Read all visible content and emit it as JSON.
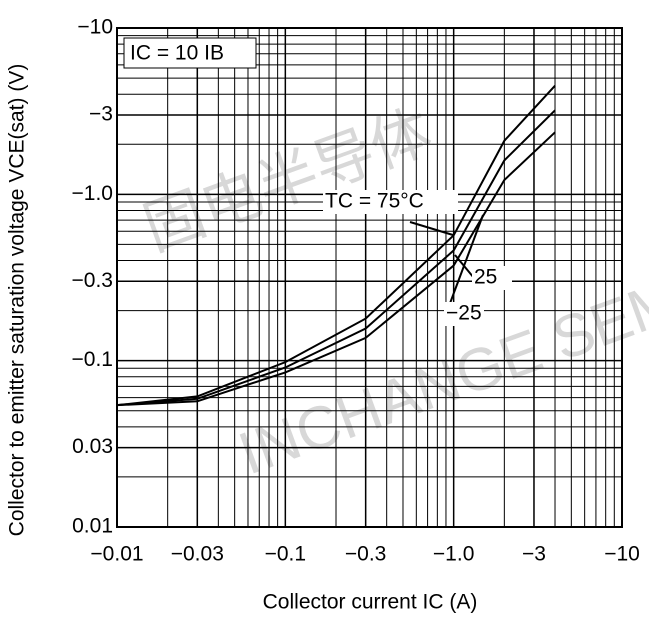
{
  "chart_data": {
    "type": "line",
    "x_label": "Collector current  IC  (A)",
    "y_label": "Collector to emitter saturation voltage VCE(sat) (V)",
    "annotation": "IC = 10 IB",
    "watermarks": [
      "固电半导体",
      "INCHANGE SEMI"
    ],
    "log_x": true,
    "log_y": true,
    "grid": true,
    "minor_grid": true,
    "xlim": [
      -0.01,
      -10
    ],
    "ylim": [
      -0.01,
      -10
    ],
    "xticks": [
      {
        "value": -0.01,
        "label": "−0.01"
      },
      {
        "value": -0.03,
        "label": "−0.03"
      },
      {
        "value": -0.1,
        "label": "−0.1"
      },
      {
        "value": -0.3,
        "label": "−0.3"
      },
      {
        "value": -1.0,
        "label": "−1.0"
      },
      {
        "value": -3,
        "label": "−3"
      },
      {
        "value": -10,
        "label": "−10"
      }
    ],
    "yticks": [
      {
        "value": -0.01,
        "label": "0.01"
      },
      {
        "value": -0.03,
        "label": "0.03"
      },
      {
        "value": -0.1,
        "label": "−0.1"
      },
      {
        "value": -0.3,
        "label": "−0.3"
      },
      {
        "value": -1.0,
        "label": "−1.0"
      },
      {
        "value": -3,
        "label": "−3"
      },
      {
        "value": -10,
        "label": "−10"
      }
    ],
    "x": [
      -0.01,
      -0.03,
      -0.1,
      -0.3,
      -1,
      -2,
      -4
    ],
    "series": [
      {
        "name": "TC = 75°C",
        "color": "#000000",
        "values": [
          -0.054,
          -0.061,
          -0.098,
          -0.179,
          -0.567,
          -2.1,
          -4.5
        ]
      },
      {
        "name": "25",
        "color": "#000000",
        "values": [
          -0.054,
          -0.059,
          -0.091,
          -0.156,
          -0.46,
          -1.6,
          -3.2
        ]
      },
      {
        "name": "−25",
        "color": "#000000",
        "values": [
          -0.054,
          -0.057,
          -0.085,
          -0.137,
          -0.373,
          -1.22,
          -2.36
        ]
      }
    ]
  }
}
